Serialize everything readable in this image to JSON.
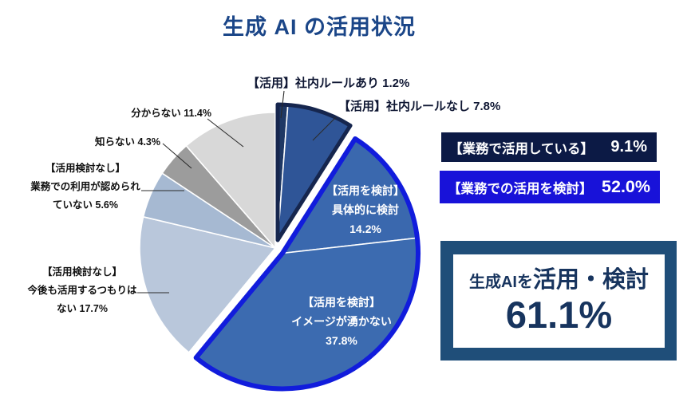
{
  "page": {
    "title": "生成 AI の活用状況"
  },
  "chart_data": {
    "type": "pie",
    "title": "生成 AI の活用状況",
    "start_angle_deg": 0,
    "direction": "clockwise",
    "unit": "%",
    "slices": [
      {
        "id": "use-rules-yes",
        "label": "【活用】社内ルールあり",
        "value": 1.2,
        "pct": "1.2%",
        "color": "#1f3864",
        "group": "use",
        "label_mode": "callout",
        "label_lines": [
          "【活用】社内ルールあり 1.2%"
        ]
      },
      {
        "id": "use-rules-no",
        "label": "【活用】社内ルールなし",
        "value": 7.8,
        "pct": "7.8%",
        "color": "#2f5597",
        "group": "use",
        "label_mode": "callout",
        "label_lines": [
          "【活用】社内ルールなし 7.8%"
        ]
      },
      {
        "id": "consider-specific",
        "label": "【活用を検討】具体的に検討",
        "value": 14.2,
        "pct": "14.2%",
        "color": "#3a68ae",
        "group": "consider",
        "label_mode": "inside",
        "label_lines": [
          "【活用を検討】",
          "具体的に検討",
          "14.2%"
        ]
      },
      {
        "id": "consider-noimage",
        "label": "【活用を検討】イメージが湧かない",
        "value": 37.8,
        "pct": "37.8%",
        "color": "#3c6bb0",
        "group": "consider",
        "label_mode": "inside",
        "label_lines": [
          "【活用を検討】",
          "イメージが湧かない",
          "37.8%"
        ]
      },
      {
        "id": "no-intent",
        "label": "【活用検討なし】今後も活用するつもりはない",
        "value": 17.7,
        "pct": "17.7%",
        "color": "#b9c7db",
        "group": null,
        "label_mode": "callout",
        "label_lines": [
          "【活用検討なし】",
          "今後も活用するつもりは",
          "ない 17.7%"
        ]
      },
      {
        "id": "not-permitted",
        "label": "【活用検討なし】業務での利用が認められていない",
        "value": 5.6,
        "pct": "5.6%",
        "color": "#a6b9d2",
        "group": null,
        "label_mode": "callout",
        "label_lines": [
          "【活用検討なし】",
          "業務での利用が認められ",
          "ていない 5.6%"
        ]
      },
      {
        "id": "dont-know",
        "label": "知らない",
        "value": 4.3,
        "pct": "4.3%",
        "color": "#9c9c9c",
        "group": null,
        "label_mode": "callout",
        "label_lines": [
          "知らない 4.3%"
        ]
      },
      {
        "id": "no-idea",
        "label": "分からない",
        "value": 11.4,
        "pct": "11.4%",
        "color": "#d8d8d8",
        "group": null,
        "label_mode": "callout",
        "label_lines": [
          "分からない 11.4%"
        ]
      }
    ],
    "groups": [
      {
        "id": "use",
        "label": "【業務で活用している】",
        "total": 9.1,
        "outline_color": "#16264e"
      },
      {
        "id": "consider",
        "label": "【業務での活用を検討】",
        "total": 52.0,
        "outline_color": "#111cdc"
      }
    ]
  },
  "side_panel": {
    "active_box": {
      "label": "【業務で活用している】",
      "value": "9.1%",
      "bg": "#0c1a45"
    },
    "consider_box": {
      "label": "【業務での活用を検討】",
      "value": "52.0%",
      "bg": "#1812d9"
    },
    "summary_box": {
      "prefix": "生成AIを",
      "emphasis": "活用・検討",
      "value": "61.1%",
      "frame_color": "#1f4e79"
    }
  }
}
